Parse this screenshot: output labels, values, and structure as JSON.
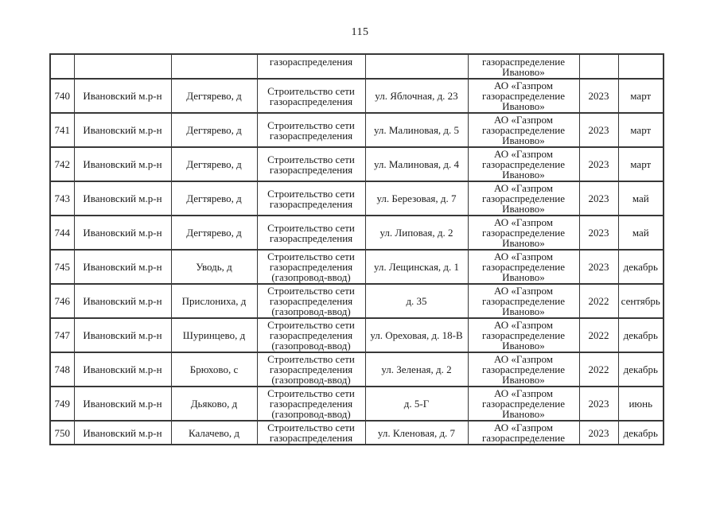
{
  "page": {
    "number": "115"
  },
  "table": {
    "rows": [
      {
        "carryover": true,
        "num": "",
        "district": "",
        "settlement": "",
        "work": "газораспределения",
        "address": "",
        "company": "газораспределение Иваново»",
        "year": "",
        "month": ""
      },
      {
        "num": "740",
        "district": "Ивановский м.р-н",
        "settlement": "Дегтярево, д",
        "work": "Строительство сети газораспределения",
        "address": "ул. Яблочная, д. 23",
        "company": "АО «Газпром газораспределение Иваново»",
        "year": "2023",
        "month": "март"
      },
      {
        "num": "741",
        "district": "Ивановский м.р-н",
        "settlement": "Дегтярево, д",
        "work": "Строительство сети газораспределения",
        "address": "ул. Малиновая, д. 5",
        "company": "АО «Газпром газораспределение Иваново»",
        "year": "2023",
        "month": "март"
      },
      {
        "num": "742",
        "district": "Ивановский м.р-н",
        "settlement": "Дегтярево, д",
        "work": "Строительство сети газораспределения",
        "address": "ул. Малиновая, д. 4",
        "company": "АО «Газпром газораспределение Иваново»",
        "year": "2023",
        "month": "март"
      },
      {
        "num": "743",
        "district": "Ивановский м.р-н",
        "settlement": "Дегтярево, д",
        "work": "Строительство сети газораспределения",
        "address": "ул. Березовая, д. 7",
        "company": "АО «Газпром газораспределение Иваново»",
        "year": "2023",
        "month": "май"
      },
      {
        "num": "744",
        "district": "Ивановский м.р-н",
        "settlement": "Дегтярево, д",
        "work": "Строительство сети газораспределения",
        "address": "ул. Липовая, д. 2",
        "company": "АО «Газпром газораспределение Иваново»",
        "year": "2023",
        "month": "май"
      },
      {
        "num": "745",
        "district": "Ивановский м.р-н",
        "settlement": "Уводь, д",
        "work": "Строительство сети газораспределения (газопровод-ввод)",
        "address": "ул. Лещинская, д. 1",
        "company": "АО «Газпром газораспределение Иваново»",
        "year": "2023",
        "month": "декабрь"
      },
      {
        "num": "746",
        "district": "Ивановский м.р-н",
        "settlement": "Прислониха, д",
        "work": "Строительство сети газораспределения (газопровод-ввод)",
        "address": "д. 35",
        "company": "АО «Газпром газораспределение Иваново»",
        "year": "2022",
        "month": "сентябрь"
      },
      {
        "num": "747",
        "district": "Ивановский м.р-н",
        "settlement": "Шуринцево, д",
        "work": "Строительство сети газораспределения (газопровод-ввод)",
        "address": "ул. Ореховая, д. 18-В",
        "company": "АО «Газпром газораспределение Иваново»",
        "year": "2022",
        "month": "декабрь"
      },
      {
        "num": "748",
        "district": "Ивановский м.р-н",
        "settlement": "Брюхово, с",
        "work": "Строительство сети газораспределения (газопровод-ввод)",
        "address": "ул. Зеленая, д. 2",
        "company": "АО «Газпром газораспределение Иваново»",
        "year": "2022",
        "month": "декабрь"
      },
      {
        "num": "749",
        "district": "Ивановский м.р-н",
        "settlement": "Дьяково, д",
        "work": "Строительство сети газораспределения (газопровод-ввод)",
        "address": "д. 5-Г",
        "company": "АО «Газпром газораспределение Иваново»",
        "year": "2023",
        "month": "июнь"
      },
      {
        "num": "750",
        "district": "Ивановский м.р-н",
        "settlement": "Калачево, д",
        "work": "Строительство сети газораспределения",
        "address": "ул. Кленовая, д. 7",
        "company": "АО «Газпром газораспределение",
        "year": "2023",
        "month": "декабрь"
      }
    ]
  }
}
